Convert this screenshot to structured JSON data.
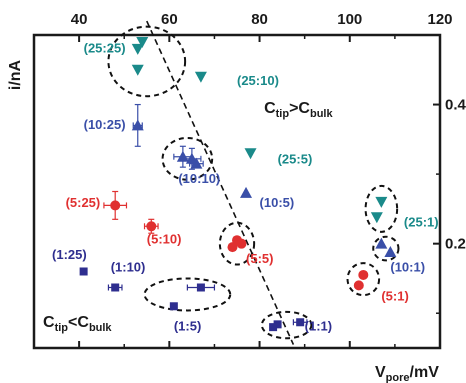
{
  "chart_data": {
    "type": "scatter",
    "title": "",
    "xlabel": "V_pore/mV",
    "xlabel_main": "V",
    "xlabel_sub": "pore",
    "xlabel_rest": "/mV",
    "ylabel": "i/nA",
    "xlim": [
      30,
      120
    ],
    "ylim": [
      0.05,
      0.5
    ],
    "x_ticks": [
      "40",
      "60",
      "80",
      "100",
      "120"
    ],
    "y_ticks": [
      "0.2",
      "0.4"
    ],
    "x_tick_values": [
      40,
      60,
      80,
      100,
      120
    ],
    "y_tick_values": [
      0.2,
      0.4
    ],
    "grid": false,
    "colors": {
      "1:x": "#2e2e8f",
      "x:5": "#e03030",
      "x:10": "#3a4fa8",
      "x:25": "#1a8a8a",
      "fit_line": "#111111",
      "axis": "#1a1a1a"
    },
    "series": [
      {
        "group": "1:x",
        "marker": "square",
        "color": "#2e2e8f",
        "points": [
          {
            "label": "(1:25)",
            "x": 41,
            "y": 0.16,
            "xerr": 0,
            "yerr": 0
          },
          {
            "label": "(1:10)",
            "x": 48,
            "y": 0.137,
            "xerr": 1.5,
            "yerr": 0
          },
          {
            "label": "(1:5)",
            "x": 67,
            "y": 0.137,
            "xerr": 3,
            "yerr": 0
          },
          {
            "label": "(1:5)",
            "x": 61,
            "y": 0.11,
            "xerr": 0,
            "yerr": 0
          },
          {
            "label": "(1:1)",
            "x": 84,
            "y": 0.084,
            "xerr": 0,
            "yerr": 0
          },
          {
            "label": "(1:1)",
            "x": 83,
            "y": 0.08,
            "xerr": 0,
            "yerr": 0
          },
          {
            "label": "(1:1)",
            "x": 89,
            "y": 0.087,
            "xerr": 1.5,
            "yerr": 0
          }
        ]
      },
      {
        "group": "x:5",
        "marker": "circle",
        "color": "#e03030",
        "points": [
          {
            "label": "(5:25)",
            "x": 48,
            "y": 0.255,
            "xerr": 2.5,
            "yerr": 0.02
          },
          {
            "label": "(5:10)",
            "x": 56,
            "y": 0.225,
            "xerr": 1.5,
            "yerr": 0.01
          },
          {
            "label": "(5:5)",
            "x": 74,
            "y": 0.195,
            "xerr": 0,
            "yerr": 0
          },
          {
            "label": "(5:5)",
            "x": 75,
            "y": 0.205,
            "xerr": 0,
            "yerr": 0
          },
          {
            "label": "(5:5)",
            "x": 76,
            "y": 0.2,
            "xerr": 0,
            "yerr": 0
          },
          {
            "label": "(5:1)",
            "x": 102,
            "y": 0.14,
            "xerr": 0,
            "yerr": 0
          },
          {
            "label": "(5:1)",
            "x": 103,
            "y": 0.155,
            "xerr": 0,
            "yerr": 0
          }
        ]
      },
      {
        "group": "x:10",
        "marker": "triangle-up",
        "color": "#3a4fa8",
        "points": [
          {
            "label": "(10:25)",
            "x": 53,
            "y": 0.37,
            "xerr": 1,
            "yerr": 0.03
          },
          {
            "label": "(10:10)",
            "x": 63,
            "y": 0.325,
            "xerr": 2,
            "yerr": 0.015
          },
          {
            "label": "(10:10)",
            "x": 65,
            "y": 0.322,
            "xerr": 2,
            "yerr": 0.015
          },
          {
            "label": "(10:10)",
            "x": 66,
            "y": 0.315,
            "xerr": 1.5,
            "yerr": 0
          },
          {
            "label": "(10:5)",
            "x": 77,
            "y": 0.273,
            "xerr": 0,
            "yerr": 0
          },
          {
            "label": "(10:1)",
            "x": 107,
            "y": 0.2,
            "xerr": 0,
            "yerr": 0
          },
          {
            "label": "(10:1)",
            "x": 109,
            "y": 0.188,
            "xerr": 0,
            "yerr": 0
          }
        ]
      },
      {
        "group": "x:25",
        "marker": "triangle-down",
        "color": "#1a8a8a",
        "points": [
          {
            "label": "(25:25)",
            "x": 53,
            "y": 0.48,
            "xerr": 0,
            "yerr": 0
          },
          {
            "label": "(25:25)",
            "x": 54,
            "y": 0.49,
            "xerr": 0,
            "yerr": 0
          },
          {
            "label": "(25:25)",
            "x": 53,
            "y": 0.45,
            "xerr": 0,
            "yerr": 0
          },
          {
            "label": "(25:10)",
            "x": 67,
            "y": 0.44,
            "xerr": 0,
            "yerr": 0
          },
          {
            "label": "(25:5)",
            "x": 78,
            "y": 0.33,
            "xerr": 0,
            "yerr": 0
          },
          {
            "label": "(25:1)",
            "x": 107,
            "y": 0.26,
            "xerr": 0,
            "yerr": 0
          },
          {
            "label": "(25:1)",
            "x": 106,
            "y": 0.238,
            "xerr": 0,
            "yerr": 0
          }
        ]
      }
    ],
    "fit_line": {
      "style": "dashed",
      "x": [
        55,
        87.5
      ],
      "y": [
        0.52,
        0.055
      ]
    },
    "annotations": [
      {
        "text": "(25:25)",
        "x": 41,
        "y": 0.475,
        "color": "#1a8a8a"
      },
      {
        "text": "(25:10)",
        "x": 75,
        "y": 0.428,
        "color": "#1a8a8a"
      },
      {
        "text": "(10:25)",
        "x": 41,
        "y": 0.365,
        "color": "#3a4fa8"
      },
      {
        "text": "(25:5)",
        "x": 84,
        "y": 0.315,
        "color": "#1a8a8a"
      },
      {
        "text": "(10:10)",
        "x": 62,
        "y": 0.287,
        "color": "#3a4fa8"
      },
      {
        "text": "(10:5)",
        "x": 80,
        "y": 0.253,
        "color": "#3a4fa8"
      },
      {
        "text": "(5:25)",
        "x": 37,
        "y": 0.253,
        "color": "#e03030"
      },
      {
        "text": "(5:10)",
        "x": 55,
        "y": 0.2,
        "color": "#e03030"
      },
      {
        "text": "(25:1)",
        "x": 112,
        "y": 0.225,
        "color": "#1a8a8a"
      },
      {
        "text": "(5:5)",
        "x": 77,
        "y": 0.172,
        "color": "#e03030"
      },
      {
        "text": "(1:25)",
        "x": 34,
        "y": 0.178,
        "color": "#2e2e8f"
      },
      {
        "text": "(1:10)",
        "x": 47,
        "y": 0.16,
        "color": "#2e2e8f"
      },
      {
        "text": "(10:1)",
        "x": 109,
        "y": 0.16,
        "color": "#3a4fa8"
      },
      {
        "text": "(5:1)",
        "x": 107,
        "y": 0.118,
        "color": "#e03030"
      },
      {
        "text": "(1:5)",
        "x": 61,
        "y": 0.075,
        "color": "#2e2e8f"
      },
      {
        "text": "(1:1)",
        "x": 90,
        "y": 0.075,
        "color": "#2e2e8f"
      }
    ],
    "clusters": [
      {
        "label": "(25:25)",
        "cx": 55,
        "cy": 0.462,
        "rx": 8.5,
        "ry": 0.05
      },
      {
        "label": "(10:10)",
        "cx": 64,
        "cy": 0.322,
        "rx": 5.5,
        "ry": 0.03
      },
      {
        "label": "(5:5)",
        "cx": 75,
        "cy": 0.2,
        "rx": 3.8,
        "ry": 0.03
      },
      {
        "label": "(25:1)",
        "cx": 107,
        "cy": 0.25,
        "rx": 3.5,
        "ry": 0.033
      },
      {
        "label": "(10:1)",
        "cx": 108,
        "cy": 0.193,
        "rx": 2.8,
        "ry": 0.017
      },
      {
        "label": "(5:1)",
        "cx": 103,
        "cy": 0.149,
        "rx": 3.5,
        "ry": 0.023
      },
      {
        "label": "(1:5)",
        "cx": 64,
        "cy": 0.127,
        "rx": 9.5,
        "ry": 0.023
      },
      {
        "label": "(1:1)",
        "cx": 86,
        "cy": 0.083,
        "rx": 5.5,
        "ry": 0.019
      }
    ],
    "regions": [
      {
        "base": "C",
        "sub1": "tip",
        "op": ">",
        "base2": "C",
        "sub2": "bulk",
        "x": 81,
        "y": 0.388
      },
      {
        "base": "C",
        "sub1": "tip",
        "op": "<",
        "base2": "C",
        "sub2": "bulk",
        "x": 32,
        "y": 0.08
      }
    ]
  }
}
